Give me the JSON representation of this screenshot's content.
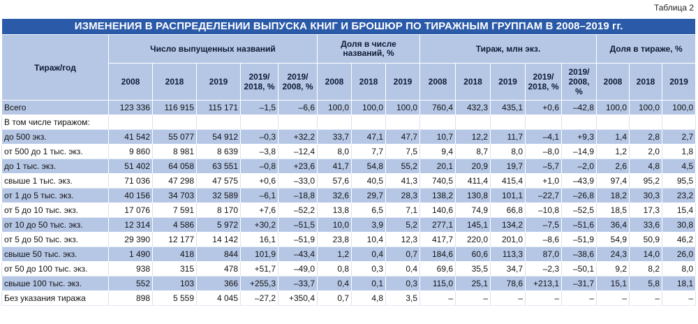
{
  "table_label": "Таблица 2",
  "title": "ИЗМЕНЕНИЯ В РАСПРЕДЕЛЕНИИ ВЫПУСКА КНИГ И БРОШЮР ПО ТИРАЖНЫМ ГРУППАМ В 2008–2019 гг.",
  "header": {
    "row_label": "Тираж/год",
    "groups": [
      "Число выпущенных названий",
      "Доля в числе названий, %",
      "Тираж, млн экз.",
      "Доля в тираже, %"
    ],
    "subcols": [
      "2008",
      "2018",
      "2019",
      "2019/ 2018, %",
      "2019/ 2008, %",
      "2008",
      "2018",
      "2019",
      "2008",
      "2018",
      "2019",
      "2019/ 2018, %",
      "2019/ 2008, %",
      "2008",
      "2018",
      "2019"
    ]
  },
  "rows": [
    {
      "label": "Всего",
      "cells": [
        "123 336",
        "116 915",
        "115 171",
        "–1,5",
        "–6,6",
        "100,0",
        "100,0",
        "100,0",
        "760,4",
        "432,3",
        "435,1",
        "+0,6",
        "–42,8",
        "100,0",
        "100,0",
        "100,0"
      ]
    },
    {
      "label": "В том числе тиражом:",
      "cells": [
        "",
        "",
        "",
        "",
        "",
        "",
        "",
        "",
        "",
        "",
        "",
        "",
        "",
        "",
        "",
        ""
      ]
    },
    {
      "label": "до 500 экз.",
      "cells": [
        "41 542",
        "55 077",
        "54 912",
        "–0,3",
        "+32,2",
        "33,7",
        "47,1",
        "47,7",
        "10,7",
        "12,2",
        "11,7",
        "–4,1",
        "+9,3",
        "1,4",
        "2,8",
        "2,7"
      ]
    },
    {
      "label": "от 500 до 1 тыс. экз.",
      "cells": [
        "9 860",
        "8 981",
        "8 639",
        "–3,8",
        "–12,4",
        "8,0",
        "7,7",
        "7,5",
        "9,4",
        "8,7",
        "8,0",
        "–8,0",
        "–14,9",
        "1,2",
        "2,0",
        "1,8"
      ]
    },
    {
      "label": "до 1 тыс. экз.",
      "cells": [
        "51 402",
        "64 058",
        "63 551",
        "–0,8",
        "+23,6",
        "41,7",
        "54,8",
        "55,2",
        "20,1",
        "20,9",
        "19,7",
        "–5,7",
        "–2,0",
        "2,6",
        "4,8",
        "4,5"
      ]
    },
    {
      "label": "свыше 1 тыс. экз.",
      "cells": [
        "71 036",
        "47 298",
        "47 575",
        "+0,6",
        "–33,0",
        "57,6",
        "40,5",
        "41,3",
        "740,5",
        "411,4",
        "415,4",
        "+1,0",
        "–43,9",
        "97,4",
        "95,2",
        "95,5"
      ]
    },
    {
      "label": "от 1 до 5 тыс. экз.",
      "cells": [
        "40 156",
        "34 703",
        "32 589",
        "–6,1",
        "–18,8",
        "32,6",
        "29,7",
        "28,3",
        "138,2",
        "130,8",
        "101,1",
        "–22,7",
        "–26,8",
        "18,2",
        "30,3",
        "23,2"
      ]
    },
    {
      "label": "от 5 до 10 тыс. экз.",
      "cells": [
        "17 076",
        "7 591",
        "8 170",
        "+7,6",
        "–52,2",
        "13,8",
        "6,5",
        "7,1",
        "140,6",
        "74,9",
        "66,8",
        "–10,8",
        "–52,5",
        "18,5",
        "17,3",
        "15,4"
      ]
    },
    {
      "label": "от 10 до 50 тыс. экз.",
      "cells": [
        "12 314",
        "4 586",
        "5 972",
        "+30,2",
        "–51,5",
        "10,0",
        "3,9",
        "5,2",
        "277,1",
        "145,1",
        "134,2",
        "–7,5",
        "–51,6",
        "36,4",
        "33,6",
        "30,8"
      ]
    },
    {
      "label": "от 5 до 50 тыс. экз.",
      "cells": [
        "29 390",
        "12 177",
        "14 142",
        "16,1",
        "–51,9",
        "23,8",
        "10,4",
        "12,3",
        "417,7",
        "220,0",
        "201,0",
        "–8,6",
        "–51,9",
        "54,9",
        "50,9",
        "46,2"
      ]
    },
    {
      "label": "свыше 50 тыс. экз.",
      "cells": [
        "1 490",
        "418",
        "844",
        "101,9",
        "–43,4",
        "1,2",
        "0,4",
        "0,7",
        "184,6",
        "60,6",
        "113,3",
        "87,0",
        "–38,6",
        "24,3",
        "14,0",
        "26,0"
      ]
    },
    {
      "label": "от 50 до 100 тыс. экз.",
      "cells": [
        "938",
        "315",
        "478",
        "+51,7",
        "–49,0",
        "0,8",
        "0,3",
        "0,4",
        "69,6",
        "35,5",
        "34,7",
        "–2,3",
        "–50,1",
        "9,2",
        "8,2",
        "8,0"
      ]
    },
    {
      "label": "свыше 100 тыс. экз.",
      "cells": [
        "552",
        "103",
        "366",
        "+255,3",
        "–33,7",
        "0,4",
        "0,1",
        "0,3",
        "115,0",
        "25,1",
        "78,6",
        "+213,1",
        "–31,7",
        "15,1",
        "5,8",
        "18,1"
      ]
    },
    {
      "label": "Без указания тиража",
      "cells": [
        "898",
        "5 559",
        "4 045",
        "–27,2",
        "+350,4",
        "0,7",
        "4,8",
        "3,5",
        "–",
        "–",
        "–",
        "–",
        "–",
        "–",
        "–",
        "–"
      ]
    }
  ]
}
